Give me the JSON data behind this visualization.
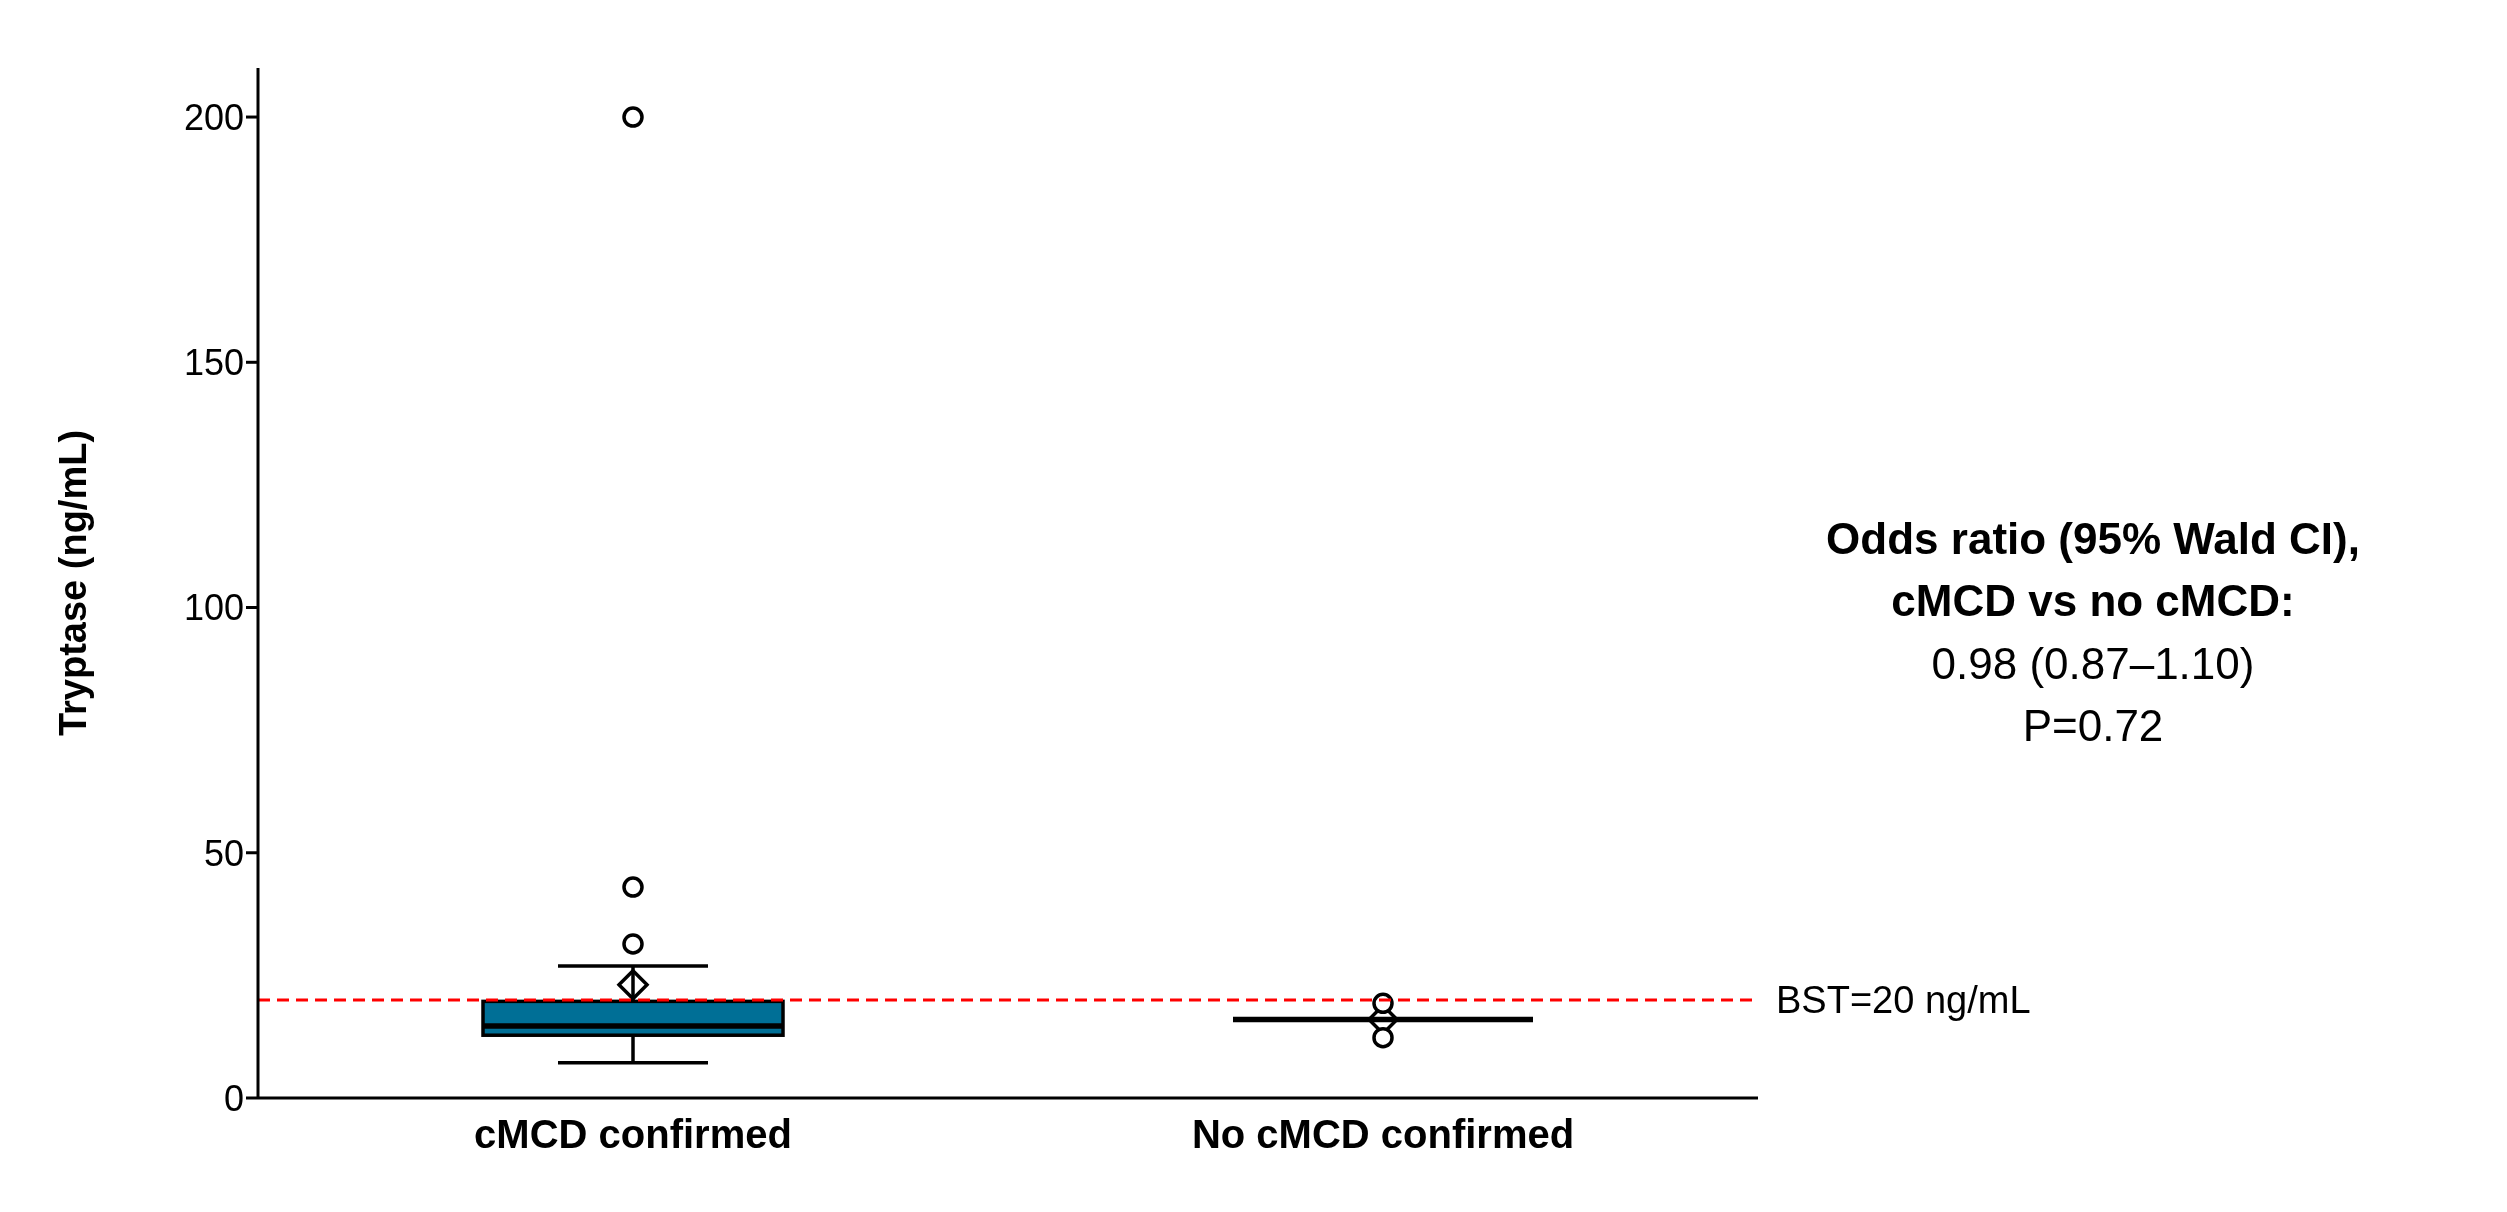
{
  "chart_data": {
    "type": "box",
    "ylabel": "Tryptase (ng/mL)",
    "categories": [
      "cMCD confirmed",
      "No cMCD confirmed"
    ],
    "colors": [
      "#006f96",
      "#000000"
    ],
    "boxes": [
      {
        "low": 7.2,
        "q1": 12.8,
        "median": 14.7,
        "q3": 19.7,
        "high": 26.9,
        "mean": 23.1,
        "outliers": [
          31.4,
          43,
          200
        ]
      },
      {
        "low": 16,
        "q1": 16,
        "median": 16,
        "q3": 16,
        "high": 16,
        "mean": 16,
        "outliers": [
          12.3,
          19.3
        ]
      }
    ],
    "ylim": [
      0,
      210
    ],
    "yticks": [
      0,
      50,
      100,
      150,
      200
    ],
    "grid": false,
    "legend": false,
    "ref_lines": [
      {
        "axis": "y",
        "value": 20,
        "label": "BST=20 ng/mL",
        "color": "#ff0000",
        "line_style": "dashed"
      }
    ],
    "annotations": [
      "Odds ratio (95% Wald CI),",
      "cMCD vs no cMCD:",
      "0.98 (0.87–1.10)",
      "P=0.72"
    ]
  }
}
